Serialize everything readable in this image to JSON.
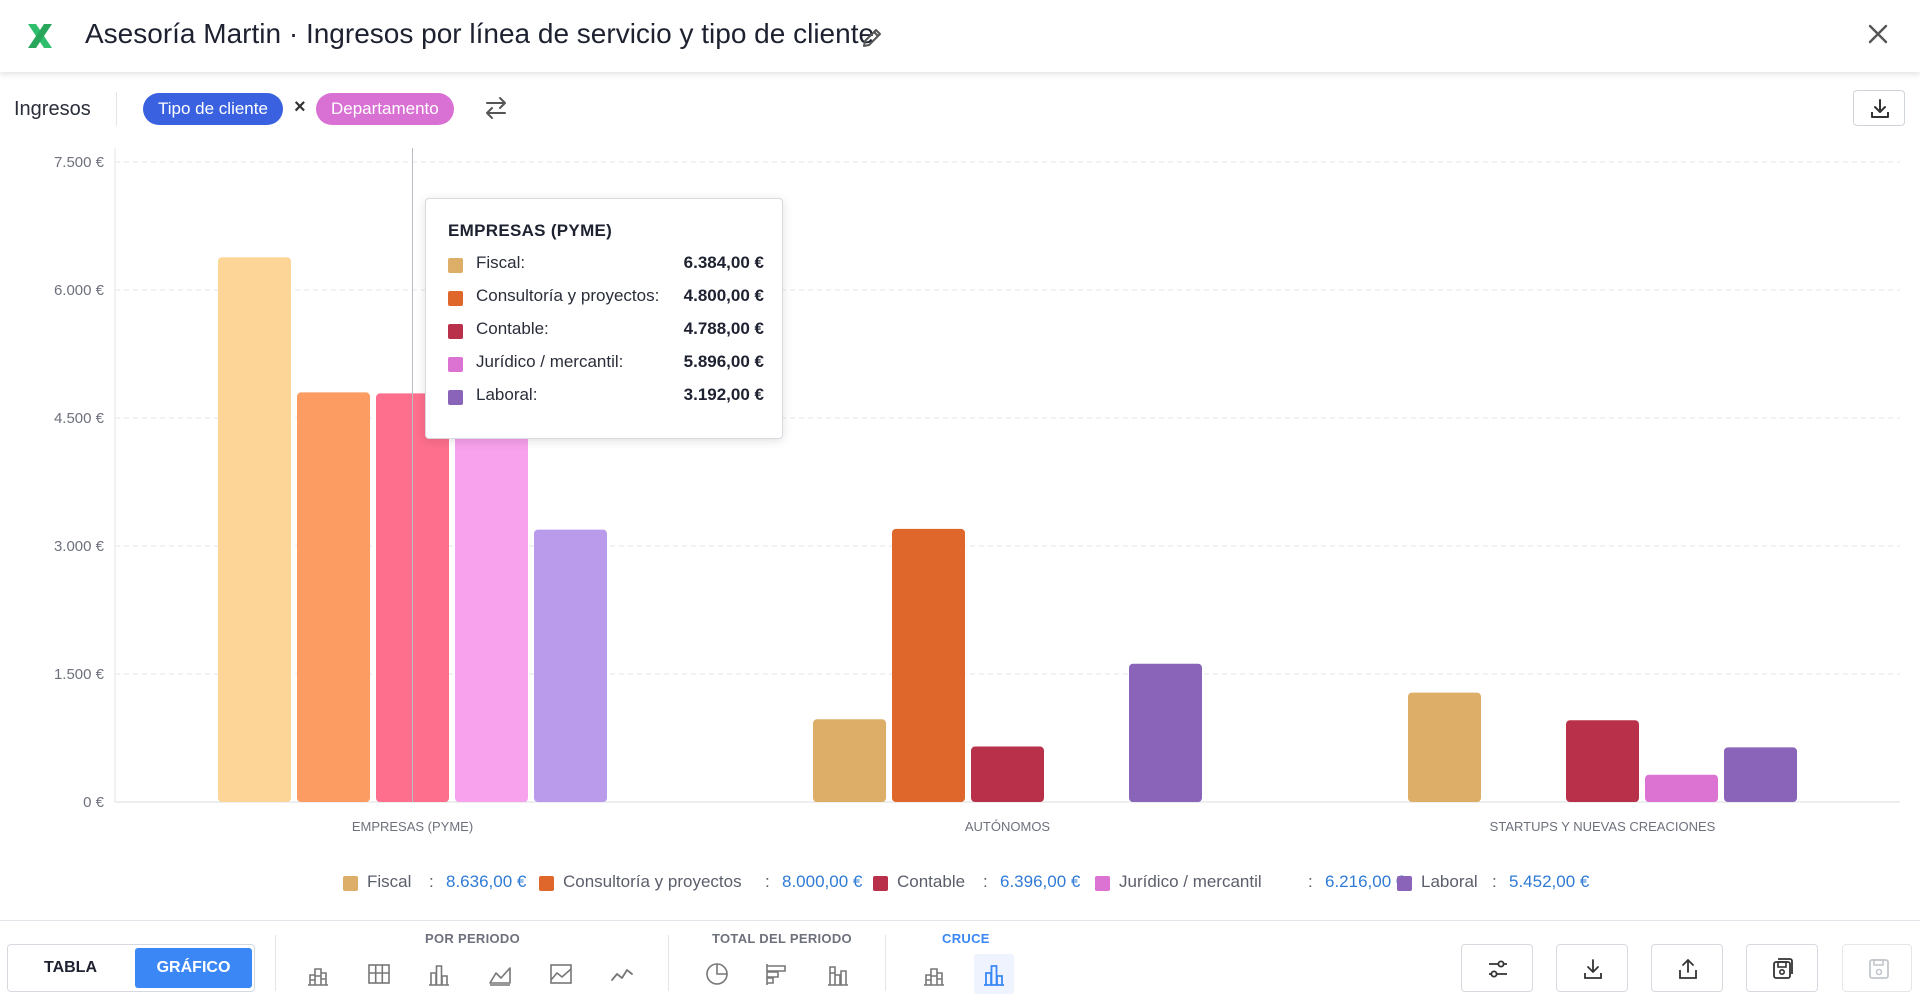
{
  "header": {
    "title": "Asesoría Martin · Ingresos por línea de servicio y tipo de cliente"
  },
  "toolbar": {
    "metric": "Ingresos",
    "chip_1": "Tipo de cliente",
    "times": "×",
    "chip_2": "Departamento"
  },
  "colors": {
    "fiscal": "#dcae68",
    "consultoria": "#e0672b",
    "contable": "#b8304a",
    "juridico": "#dc72d1",
    "laboral": "#8a64b8",
    "value_blue": "#2f7bd6",
    "toggle_active": "#3a87f5"
  },
  "chart_data": {
    "type": "bar",
    "categories": [
      "EMPRESAS (PYME)",
      "AUTÓNOMOS",
      "STARTUPS Y NUEVAS CREACIONES"
    ],
    "series": [
      {
        "name": "Fiscal",
        "values": [
          6384,
          970,
          1282
        ]
      },
      {
        "name": "Consultoría y proyectos",
        "values": [
          4800,
          3200,
          0
        ]
      },
      {
        "name": "Contable",
        "values": [
          4788,
          650,
          958
        ]
      },
      {
        "name": "Jurídico / mercantil",
        "values": [
          5896,
          0,
          320
        ]
      },
      {
        "name": "Laboral",
        "values": [
          3192,
          1620,
          640
        ]
      }
    ],
    "yticks": [
      "0 €",
      "1.500 €",
      "3.000 €",
      "4.500 €",
      "6.000 €",
      "7.500 €"
    ],
    "ylim": [
      0,
      7500
    ],
    "grid": true,
    "highlighted_category": "EMPRESAS (PYME)"
  },
  "tooltip": {
    "title": "EMPRESAS (PYME)",
    "rows": [
      {
        "label": "Fiscal:",
        "value": "6.384,00 €"
      },
      {
        "label": "Consultoría y proyectos:",
        "value": "4.800,00 €"
      },
      {
        "label": "Contable:",
        "value": "4.788,00 €"
      },
      {
        "label": "Jurídico / mercantil:",
        "value": "5.896,00 €"
      },
      {
        "label": "Laboral:",
        "value": "3.192,00 €"
      }
    ]
  },
  "legend": [
    {
      "name": "Fiscal",
      "value": "8.636,00 €"
    },
    {
      "name": "Consultoría y proyectos",
      "value": "8.000,00 €"
    },
    {
      "name": "Contable",
      "value": "6.396,00 €"
    },
    {
      "name": "Jurídico / mercantil",
      "value": "6.216,00 €"
    },
    {
      "name": "Laboral",
      "value": "5.452,00 €"
    }
  ],
  "legend_separator": ":",
  "footer": {
    "tabla": "TABLA",
    "grafico": "GRÁFICO",
    "group_periodo": "POR PERIODO",
    "group_total": "TOTAL DEL PERIODO",
    "group_cruce": "CRUCE"
  }
}
